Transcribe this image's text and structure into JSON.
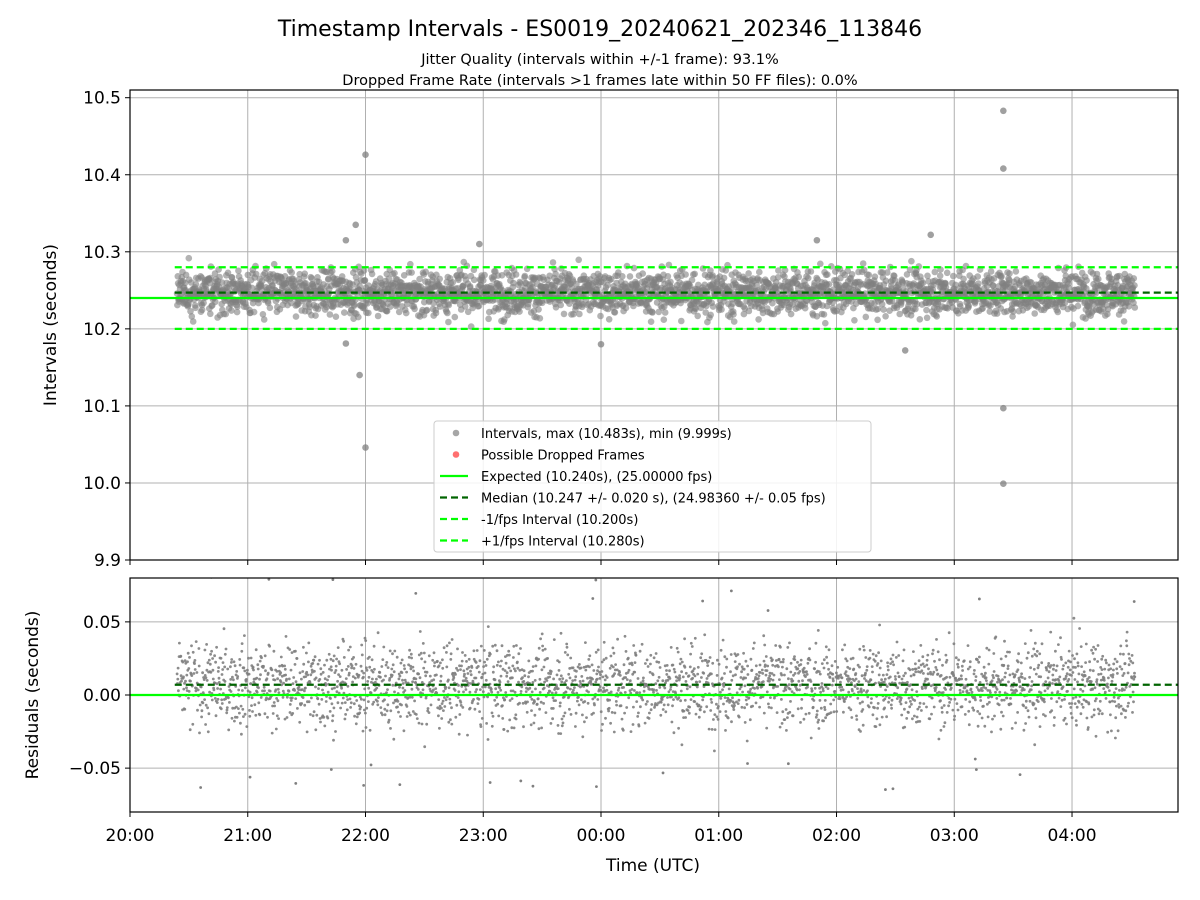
{
  "title": "Timestamp Intervals - ES0019_20240621_202346_113846",
  "subtitle_lines": [
    "Jitter Quality (intervals within +/-1 frame): 93.1%",
    "Dropped Frame Rate (intervals >1 frames late within 50 FF files): 0.0%"
  ],
  "colors": {
    "points": "#808080",
    "dropped": "#ff3333",
    "expected": "#00ff00",
    "median": "#006400",
    "fps_interval": "#00ff00",
    "grid": "#b0b0b0"
  },
  "chart_data": [
    {
      "type": "scatter",
      "panel": "top",
      "ylabel": "Intervals (seconds)",
      "ylim": [
        9.9,
        10.51
      ],
      "yticks": [
        9.9,
        10.0,
        10.1,
        10.2,
        10.3,
        10.4,
        10.5
      ],
      "ytick_labels": [
        "9.9",
        "10.0",
        "10.1",
        "10.2",
        "10.3",
        "10.4",
        "10.5"
      ],
      "xlim_hours": [
        20.0,
        28.9
      ],
      "grid": true,
      "legend_position": "lower center",
      "scatter_band": {
        "x_start": "20:24",
        "x_end": "04:32",
        "mean": 10.247,
        "std": 0.02,
        "count": 2860
      },
      "outliers": [
        {
          "x": "21:50",
          "y": 10.315
        },
        {
          "x": "21:55",
          "y": 10.335
        },
        {
          "x": "22:00",
          "y": 10.426
        },
        {
          "x": "21:57",
          "y": 10.14
        },
        {
          "x": "22:00",
          "y": 10.046
        },
        {
          "x": "21:50",
          "y": 10.181
        },
        {
          "x": "03:25",
          "y": 10.483
        },
        {
          "x": "03:25",
          "y": 10.408
        },
        {
          "x": "03:25",
          "y": 10.097
        },
        {
          "x": "03:25",
          "y": 9.999
        },
        {
          "x": "02:48",
          "y": 10.322
        },
        {
          "x": "22:58",
          "y": 10.31
        },
        {
          "x": "02:35",
          "y": 10.172
        },
        {
          "x": "00:00",
          "y": 10.18
        },
        {
          "x": "01:50",
          "y": 10.315
        }
      ],
      "lines": [
        {
          "name": "Expected (10.240s), (25.00000 fps)",
          "y": 10.24,
          "style": "solid",
          "color": "#00ff00"
        },
        {
          "name": "Median (10.247 +/- 0.020 s), (24.98360 +/- 0.05 fps)",
          "y": 10.247,
          "style": "dashed",
          "color": "#006400"
        },
        {
          "name": "-1/fps Interval (10.200s)",
          "y": 10.2,
          "style": "dashed",
          "color": "#00ff00"
        },
        {
          "name": "+1/fps Interval (10.280s)",
          "y": 10.28,
          "style": "dashed",
          "color": "#00ff00"
        }
      ],
      "legend": [
        {
          "label": "Intervals, max (10.483s), min (9.999s)",
          "marker": "point",
          "color": "#808080"
        },
        {
          "label": "Possible Dropped Frames",
          "marker": "point",
          "color": "#ff3333"
        },
        {
          "label": "Expected (10.240s), (25.00000 fps)",
          "marker": "solid",
          "color": "#00ff00"
        },
        {
          "label": "Median (10.247 +/- 0.020 s), (24.98360 +/- 0.05 fps)",
          "marker": "dashed",
          "color": "#006400"
        },
        {
          "label": "-1/fps Interval (10.200s)",
          "marker": "dashed",
          "color": "#00ff00"
        },
        {
          "label": "+1/fps Interval (10.280s)",
          "marker": "dashed",
          "color": "#00ff00"
        }
      ]
    },
    {
      "type": "scatter",
      "panel": "bottom",
      "ylabel": "Residuals (seconds)",
      "xlabel": "Time (UTC)",
      "ylim": [
        -0.08,
        0.08
      ],
      "yticks": [
        -0.05,
        0.0,
        0.05
      ],
      "ytick_labels": [
        "−0.05",
        "0.00",
        "0.05"
      ],
      "xlim_hours": [
        20.0,
        28.9
      ],
      "xticks": [
        "20:00",
        "21:00",
        "22:00",
        "23:00",
        "00:00",
        "01:00",
        "02:00",
        "03:00",
        "04:00"
      ],
      "grid": true,
      "scatter_band": {
        "x_start": "20:24",
        "x_end": "04:32",
        "mean": 0.007,
        "std": 0.02,
        "count": 2860
      },
      "lines": [
        {
          "y": 0.0,
          "style": "solid",
          "color": "#00ff00"
        },
        {
          "y": 0.007,
          "style": "dashed",
          "color": "#006400"
        }
      ]
    }
  ]
}
